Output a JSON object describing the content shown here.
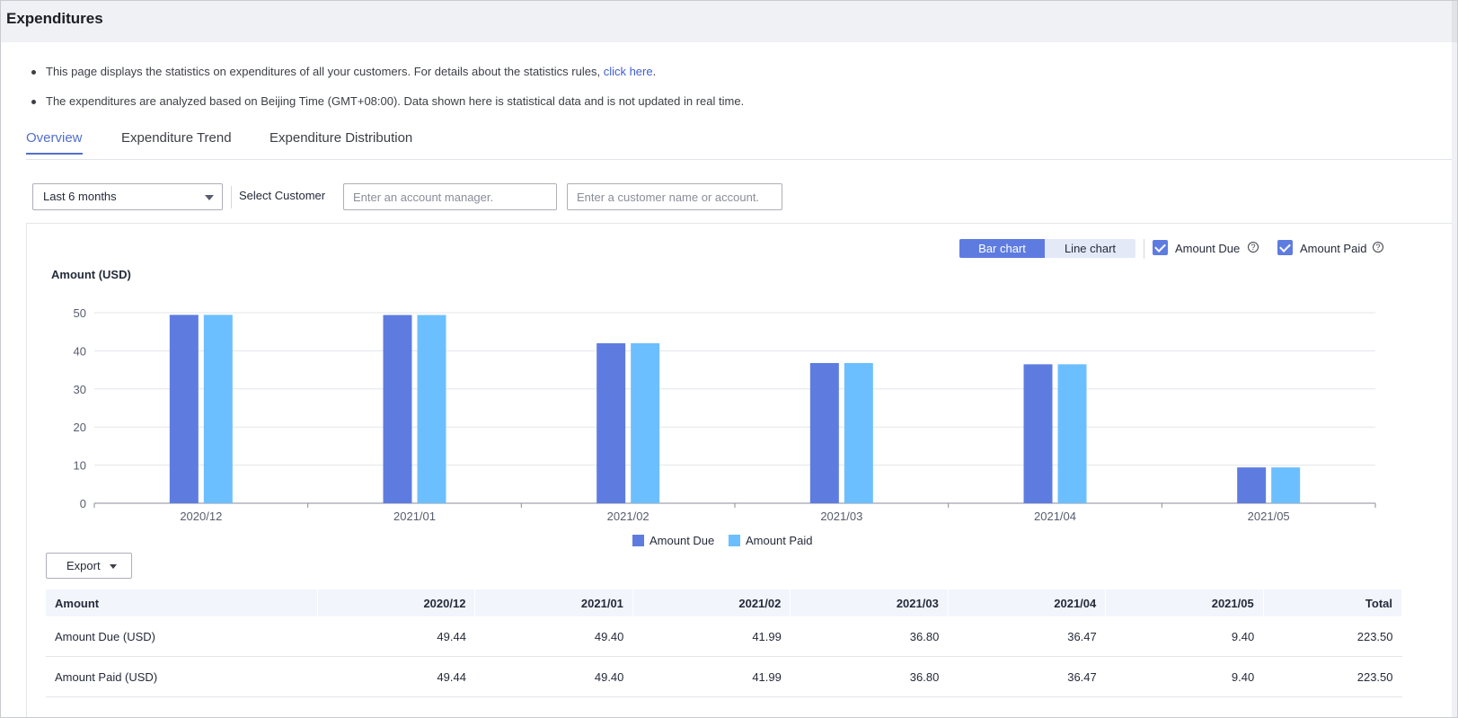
{
  "page": {
    "title": "Expenditures",
    "notes": [
      {
        "text": "This page displays the statistics on expenditures of all your customers. For details about the statistics rules, ",
        "link": "click here",
        "after": "."
      },
      {
        "text": "The expenditures are analyzed based on Beijing Time (GMT+08:00). Data shown here is statistical data and is not updated in real time.",
        "link": "",
        "after": ""
      }
    ]
  },
  "tabs": [
    {
      "label": "Overview",
      "active": true
    },
    {
      "label": "Expenditure Trend",
      "active": false
    },
    {
      "label": "Expenditure Distribution",
      "active": false
    }
  ],
  "filters": {
    "period": "Last 6 months",
    "customer_label": "Select Customer",
    "manager_placeholder": "Enter an account manager.",
    "customer_placeholder": "Enter a customer name or account."
  },
  "chart_controls": {
    "bar_label": "Bar chart",
    "line_label": "Line chart",
    "selected": "Bar chart",
    "amount_due_label": "Amount Due",
    "amount_due_checked": true,
    "amount_paid_label": "Amount Paid",
    "amount_paid_checked": true
  },
  "colors": {
    "amount_due": "#5e7ce0",
    "amount_paid": "#6cbfff",
    "accent": "#526ecc"
  },
  "chart_data": {
    "type": "bar",
    "ylabel": "Amount (USD)",
    "categories": [
      "2020/12",
      "2021/01",
      "2021/02",
      "2021/03",
      "2021/04",
      "2021/05"
    ],
    "series": [
      {
        "name": "Amount Due",
        "values": [
          49.44,
          49.4,
          41.99,
          36.8,
          36.47,
          9.4
        ]
      },
      {
        "name": "Amount Paid",
        "values": [
          49.44,
          49.4,
          41.99,
          36.8,
          36.47,
          9.4
        ]
      }
    ],
    "ylim": [
      0,
      50
    ],
    "yticks": [
      0,
      10,
      20,
      30,
      40,
      50
    ],
    "grid": true,
    "legend": "bottom-center"
  },
  "export_label": "Export",
  "table": {
    "headers": [
      "Amount",
      "2020/12",
      "2021/01",
      "2021/02",
      "2021/03",
      "2021/04",
      "2021/05",
      "Total"
    ],
    "rows": [
      [
        "Amount Due (USD)",
        "49.44",
        "49.40",
        "41.99",
        "36.80",
        "36.47",
        "9.40",
        "223.50"
      ],
      [
        "Amount Paid (USD)",
        "49.44",
        "49.40",
        "41.99",
        "36.80",
        "36.47",
        "9.40",
        "223.50"
      ]
    ]
  }
}
